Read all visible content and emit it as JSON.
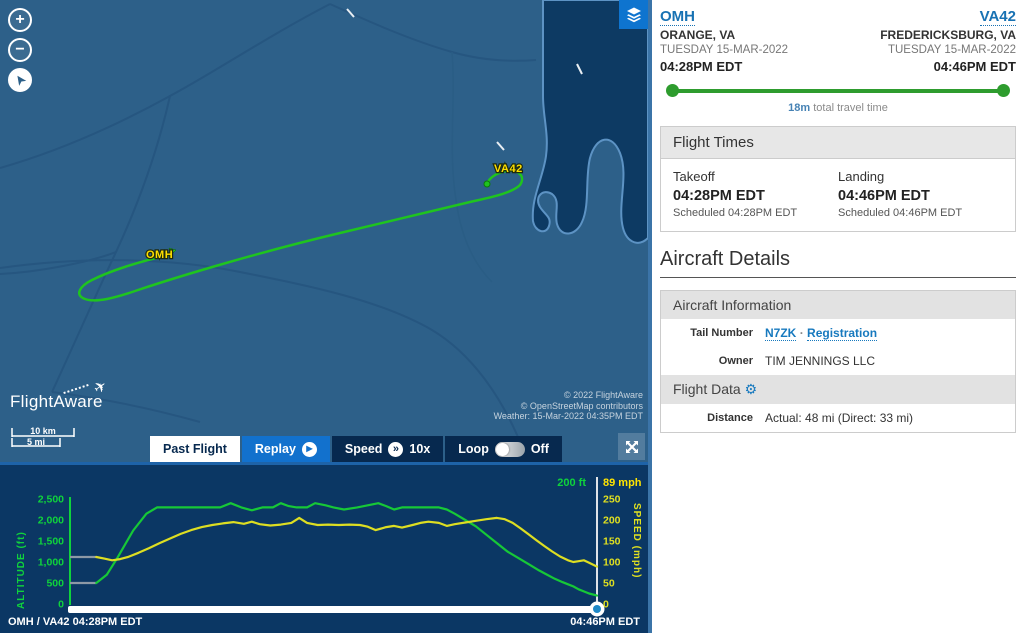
{
  "map": {
    "origin_label": "OMH",
    "dest_label": "VA42",
    "logo_text": "FlightAware",
    "scale_km": "10 km",
    "scale_mi": "5 mi",
    "attribution": [
      "© 2022 FlightAware",
      "© OpenStreetMap contributors",
      "Weather: 15-Mar-2022 04:35PM EDT"
    ],
    "controls": {
      "zoom_in": "+",
      "zoom_out": "−",
      "compass": "➤"
    },
    "toolbar": {
      "past_flight": "Past Flight",
      "replay": "Replay",
      "speed_label": "Speed",
      "speed_value": "10x",
      "loop_label": "Loop",
      "loop_state": "Off"
    }
  },
  "icons": {
    "play": "▶",
    "fast_forward": "»",
    "gear": "⚙",
    "plane": "✈"
  },
  "header": {
    "origin": {
      "code": "OMH",
      "city": "ORANGE, VA",
      "date": "TUESDAY 15-MAR-2022",
      "time": "04:28PM EDT"
    },
    "destination": {
      "code": "VA42",
      "city": "FREDERICKSBURG, VA",
      "date": "TUESDAY 15-MAR-2022",
      "time": "04:46PM EDT"
    },
    "travel_time_value": "18m",
    "travel_time_suffix": " total travel time"
  },
  "flight_times": {
    "title": "Flight Times",
    "takeoff": {
      "label": "Takeoff",
      "time": "04:28PM EDT",
      "scheduled": "Scheduled 04:28PM EDT"
    },
    "landing": {
      "label": "Landing",
      "time": "04:46PM EDT",
      "scheduled": "Scheduled 04:46PM EDT"
    }
  },
  "aircraft_details": {
    "title": "Aircraft Details",
    "info_title": "Aircraft Information",
    "tail_number_label": "Tail Number",
    "tail_number": "N7ZK",
    "tail_separator": "·",
    "registration_link": "Registration",
    "owner_label": "Owner",
    "owner": "TIM JENNINGS LLC",
    "flight_data_title": "Flight Data",
    "distance_label": "Distance",
    "distance_value": "Actual: 48 mi (Direct: 33 mi)"
  },
  "chart_data": {
    "type": "line",
    "x_start_label": "OMH / VA42 04:28PM EDT",
    "x_end_label": "04:46PM EDT",
    "lead_in_color": "#8d99a6",
    "left_axis": {
      "label": "ALTITUDE (ft)",
      "color": "#0fd23c",
      "max": 2500,
      "ticks": [
        0,
        500,
        1000,
        1500,
        2000,
        2500
      ],
      "tick_labels": [
        "0",
        "500",
        "1,000",
        "1,500",
        "2,000",
        "2,500"
      ],
      "current_value": "200 ft"
    },
    "right_axis": {
      "label": "SPEED (mph)",
      "color": "#e0e020",
      "max": 250,
      "ticks": [
        0,
        50,
        100,
        150,
        200,
        250
      ],
      "tick_labels": [
        "0",
        "50",
        "100",
        "150",
        "200",
        "250"
      ],
      "current_value": "89 mph"
    },
    "series": [
      {
        "name": "altitude_ft",
        "axis": "left",
        "color": "#17c837",
        "points": [
          [
            0,
            500
          ],
          [
            0.05,
            500
          ],
          [
            0.07,
            700
          ],
          [
            0.09,
            1100
          ],
          [
            0.12,
            1750
          ],
          [
            0.145,
            2150
          ],
          [
            0.165,
            2300
          ],
          [
            0.2,
            2300
          ],
          [
            0.25,
            2300
          ],
          [
            0.285,
            2300
          ],
          [
            0.305,
            2400
          ],
          [
            0.325,
            2300
          ],
          [
            0.345,
            2230
          ],
          [
            0.365,
            2300
          ],
          [
            0.385,
            2300
          ],
          [
            0.4,
            2400
          ],
          [
            0.415,
            2330
          ],
          [
            0.43,
            2300
          ],
          [
            0.45,
            2300
          ],
          [
            0.465,
            2400
          ],
          [
            0.485,
            2350
          ],
          [
            0.5,
            2300
          ],
          [
            0.52,
            2250
          ],
          [
            0.545,
            2300
          ],
          [
            0.565,
            2350
          ],
          [
            0.585,
            2400
          ],
          [
            0.6,
            2330
          ],
          [
            0.615,
            2250
          ],
          [
            0.63,
            2300
          ],
          [
            0.655,
            2300
          ],
          [
            0.68,
            2300
          ],
          [
            0.7,
            2300
          ],
          [
            0.715,
            2250
          ],
          [
            0.73,
            2150
          ],
          [
            0.75,
            2000
          ],
          [
            0.77,
            1850
          ],
          [
            0.79,
            1650
          ],
          [
            0.81,
            1450
          ],
          [
            0.83,
            1250
          ],
          [
            0.85,
            1100
          ],
          [
            0.87,
            950
          ],
          [
            0.89,
            800
          ],
          [
            0.905,
            700
          ],
          [
            0.92,
            600
          ],
          [
            0.935,
            520
          ],
          [
            0.945,
            470
          ],
          [
            0.955,
            420
          ],
          [
            0.965,
            350
          ],
          [
            0.975,
            300
          ],
          [
            0.985,
            250
          ],
          [
            1,
            200
          ]
        ]
      },
      {
        "name": "speed_mph",
        "axis": "right",
        "color": "#ddde22",
        "points": [
          [
            0,
            112
          ],
          [
            0.05,
            112
          ],
          [
            0.065,
            108
          ],
          [
            0.08,
            104
          ],
          [
            0.095,
            107
          ],
          [
            0.11,
            112
          ],
          [
            0.13,
            122
          ],
          [
            0.15,
            133
          ],
          [
            0.17,
            145
          ],
          [
            0.19,
            156
          ],
          [
            0.21,
            167
          ],
          [
            0.23,
            176
          ],
          [
            0.25,
            183
          ],
          [
            0.27,
            188
          ],
          [
            0.29,
            192
          ],
          [
            0.31,
            195
          ],
          [
            0.33,
            191
          ],
          [
            0.345,
            196
          ],
          [
            0.36,
            190
          ],
          [
            0.38,
            187
          ],
          [
            0.4,
            189
          ],
          [
            0.42,
            193
          ],
          [
            0.435,
            205
          ],
          [
            0.45,
            193
          ],
          [
            0.47,
            188
          ],
          [
            0.49,
            189
          ],
          [
            0.51,
            188
          ],
          [
            0.53,
            189
          ],
          [
            0.55,
            188
          ],
          [
            0.565,
            184
          ],
          [
            0.58,
            176
          ],
          [
            0.6,
            183
          ],
          [
            0.615,
            186
          ],
          [
            0.63,
            182
          ],
          [
            0.65,
            188
          ],
          [
            0.665,
            193
          ],
          [
            0.68,
            196
          ],
          [
            0.7,
            193
          ],
          [
            0.715,
            186
          ],
          [
            0.73,
            190
          ],
          [
            0.75,
            194
          ],
          [
            0.77,
            198
          ],
          [
            0.79,
            202
          ],
          [
            0.81,
            205
          ],
          [
            0.825,
            202
          ],
          [
            0.84,
            193
          ],
          [
            0.855,
            180
          ],
          [
            0.87,
            166
          ],
          [
            0.885,
            152
          ],
          [
            0.9,
            138
          ],
          [
            0.915,
            125
          ],
          [
            0.93,
            113
          ],
          [
            0.945,
            104
          ],
          [
            0.955,
            100
          ],
          [
            0.965,
            102
          ],
          [
            0.975,
            104
          ],
          [
            0.985,
            98
          ],
          [
            1,
            89
          ]
        ]
      }
    ]
  }
}
